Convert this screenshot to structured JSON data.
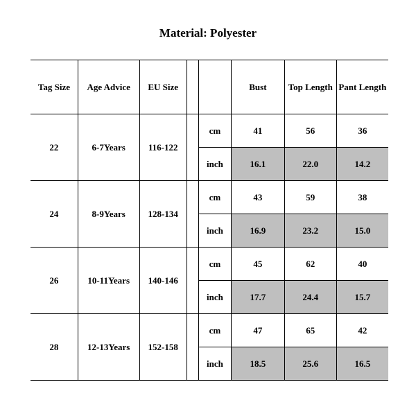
{
  "title": "Material: Polyester",
  "headers": {
    "tag": "Tag Size",
    "age": "Age Advice",
    "eu": "EU Size",
    "gap": "",
    "unit": "",
    "bust": "Bust",
    "top": "Top Length",
    "pant": "Pant Length"
  },
  "unit": {
    "cm": "cm",
    "inch": "inch"
  },
  "rows": [
    {
      "tag": "22",
      "age": "6-7Years",
      "eu": "116-122",
      "cm": {
        "bust": "41",
        "top": "56",
        "pant": "36"
      },
      "inch": {
        "bust": "16.1",
        "top": "22.0",
        "pant": "14.2"
      }
    },
    {
      "tag": "24",
      "age": "8-9Years",
      "eu": "128-134",
      "cm": {
        "bust": "43",
        "top": "59",
        "pant": "38"
      },
      "inch": {
        "bust": "16.9",
        "top": "23.2",
        "pant": "15.0"
      }
    },
    {
      "tag": "26",
      "age": "10-11Years",
      "eu": "140-146",
      "cm": {
        "bust": "45",
        "top": "62",
        "pant": "40"
      },
      "inch": {
        "bust": "17.7",
        "top": "24.4",
        "pant": "15.7"
      }
    },
    {
      "tag": "28",
      "age": "12-13Years",
      "eu": "152-158",
      "cm": {
        "bust": "47",
        "top": "65",
        "pant": "42"
      },
      "inch": {
        "bust": "18.5",
        "top": "25.6",
        "pant": "16.5"
      }
    }
  ],
  "colors": {
    "shade": "#bfbfbf",
    "border": "#000000",
    "bg": "#ffffff",
    "text": "#000000"
  }
}
